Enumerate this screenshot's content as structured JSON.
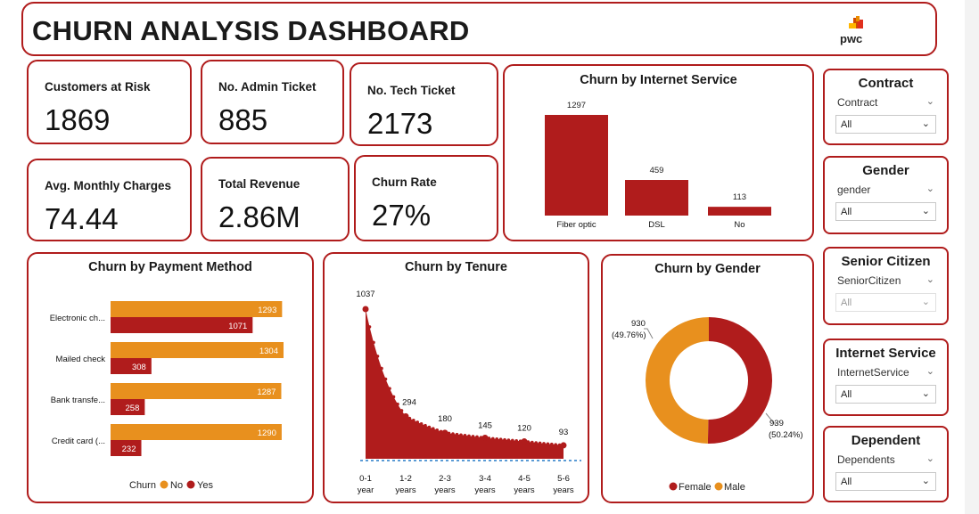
{
  "header": {
    "title": "CHURN ANALYSIS DASHBOARD",
    "logo_text": "pwc"
  },
  "kpis": {
    "customers_at_risk": {
      "label": "Customers at Risk",
      "value": "1869"
    },
    "admin_ticket": {
      "label": "No. Admin Ticket",
      "value": "885"
    },
    "tech_ticket": {
      "label": "No. Tech Ticket",
      "value": "2173"
    },
    "avg_monthly": {
      "label": "Avg. Monthly Charges",
      "value": "74.44"
    },
    "total_revenue": {
      "label": "Total Revenue",
      "value": "2.86M"
    },
    "churn_rate": {
      "label": "Churn Rate",
      "value": "27%"
    }
  },
  "colors": {
    "accent": "#b01c1c",
    "yes": "#b01c1c",
    "no": "#e8901e"
  },
  "chart_data": [
    {
      "id": "internet",
      "type": "bar",
      "title": "Churn by Internet Service",
      "categories": [
        "Fiber optic",
        "DSL",
        "No"
      ],
      "values": [
        1297,
        459,
        113
      ]
    },
    {
      "id": "payment",
      "type": "bar",
      "title": "Churn by Payment Method",
      "categories": [
        "Electronic ch...",
        "Mailed check",
        "Bank transfe...",
        "Credit card (..."
      ],
      "series": [
        {
          "name": "No",
          "values": [
            1293,
            1304,
            1287,
            1290
          ]
        },
        {
          "name": "Yes",
          "values": [
            1071,
            308,
            258,
            232
          ]
        }
      ],
      "legend_title": "Churn",
      "legend_position": "bottom"
    },
    {
      "id": "tenure",
      "type": "area",
      "title": "Churn by Tenure",
      "categories": [
        "0-1 year",
        "1-2 years",
        "2-3 years",
        "3-4 years",
        "4-5 years",
        "5-6 years"
      ],
      "cat_lines": [
        [
          "0-1",
          "year"
        ],
        [
          "1-2",
          "years"
        ],
        [
          "2-3",
          "years"
        ],
        [
          "3-4",
          "years"
        ],
        [
          "4-5",
          "years"
        ],
        [
          "5-6",
          "years"
        ]
      ],
      "values": [
        1037,
        294,
        180,
        145,
        120,
        93
      ]
    },
    {
      "id": "gender",
      "type": "pie",
      "title": "Churn by Gender",
      "slices": [
        {
          "name": "Female",
          "value": 939,
          "pct": "(50.24%)"
        },
        {
          "name": "Male",
          "value": 930,
          "pct": "(49.76%)"
        }
      ],
      "legend_position": "bottom"
    }
  ],
  "slicers": [
    {
      "title": "Contract",
      "field": "Contract",
      "value": "All"
    },
    {
      "title": "Gender",
      "field": "gender",
      "value": "All"
    },
    {
      "title": "Senior Citizen",
      "field": "SeniorCitizen",
      "value": "All"
    },
    {
      "title": "Internet Service",
      "field": "InternetService",
      "value": "All"
    },
    {
      "title": "Dependent",
      "field": "Dependents",
      "value": "All"
    }
  ]
}
